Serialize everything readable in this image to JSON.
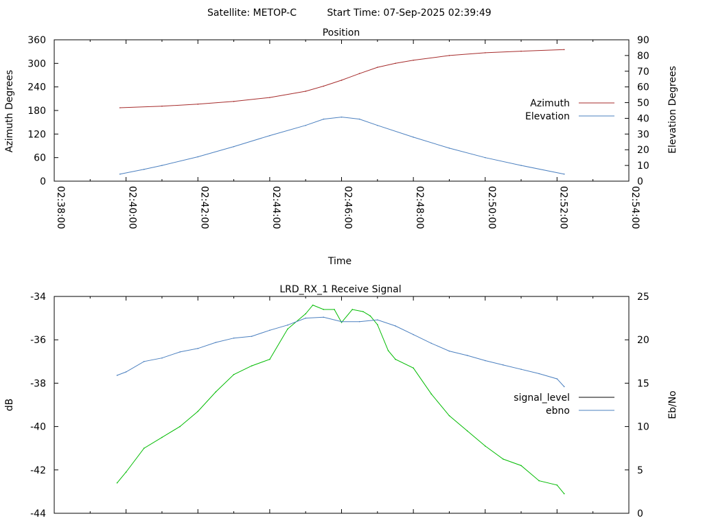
{
  "header": {
    "satellite": "Satellite: METOP-C",
    "start_time": "Start Time: 07-Sep-2025 02:39:49"
  },
  "chart_data": [
    {
      "type": "line",
      "title": "Position",
      "xlabel": "Time",
      "ylabel": "Azimuth Degrees",
      "y2label": "Elevation Degrees",
      "x_ticks": [
        "02:38:00",
        "02:40:00",
        "02:42:00",
        "02:44:00",
        "02:46:00",
        "02:48:00",
        "02:50:00",
        "02:52:00",
        "02:54:00"
      ],
      "y_ticks": [
        "0",
        "60",
        "120",
        "180",
        "240",
        "300",
        "360"
      ],
      "y2_ticks": [
        "0",
        "10",
        "20",
        "30",
        "40",
        "50",
        "60",
        "70",
        "80",
        "90"
      ],
      "xlim_minutes": [
        0,
        16
      ],
      "ylim": [
        0,
        360
      ],
      "y2lim": [
        0,
        90
      ],
      "legend_position": "right",
      "series": [
        {
          "name": "Azimuth",
          "axis": "left",
          "color": "#a52a2a",
          "x_minutes": [
            1.83,
            3,
            4,
            5,
            6,
            7,
            7.5,
            8,
            8.5,
            9,
            9.5,
            10,
            11,
            12,
            13,
            14.2
          ],
          "values": [
            187,
            191,
            196,
            203,
            213,
            229,
            242,
            257,
            274,
            290,
            300,
            308,
            320,
            327,
            331,
            335
          ]
        },
        {
          "name": "Elevation",
          "axis": "right",
          "color": "#4a7fbf",
          "x_minutes": [
            1.83,
            2.5,
            3,
            4,
            5,
            6,
            7,
            7.5,
            8,
            8.5,
            9,
            10,
            11,
            12,
            13,
            14.2
          ],
          "values": [
            4.5,
            7.5,
            10,
            15.5,
            22,
            29,
            35.5,
            39.5,
            40.8,
            39.5,
            35.5,
            28,
            21,
            15,
            10,
            4.5
          ]
        }
      ]
    },
    {
      "type": "line",
      "title": "LRD_RX_1 Receive Signal",
      "ylabel": "dB",
      "y2label": "Eb/No",
      "y_ticks": [
        "-34",
        "-36",
        "-38",
        "-40",
        "-42",
        "-44"
      ],
      "y2_ticks": [
        "25",
        "20",
        "15",
        "10",
        "5",
        "0"
      ],
      "xlim_minutes": [
        0,
        16
      ],
      "ylim": [
        -44,
        -34
      ],
      "y2lim": [
        0,
        25
      ],
      "legend_position": "right",
      "series": [
        {
          "name": "signal_level",
          "axis": "left",
          "color": "#00bb00",
          "x_minutes": [
            1.75,
            2,
            2.5,
            3,
            3.5,
            4,
            4.5,
            5,
            5.5,
            6,
            6.5,
            7,
            7.2,
            7.5,
            7.8,
            8,
            8.3,
            8.6,
            8.8,
            9,
            9.3,
            9.5,
            10,
            10.5,
            11,
            11.5,
            12,
            12.5,
            13,
            13.5,
            14,
            14.2
          ],
          "values": [
            -42.6,
            -42.1,
            -41,
            -40.5,
            -40,
            -39.3,
            -38.4,
            -37.6,
            -37.2,
            -36.9,
            -35.5,
            -34.8,
            -34.4,
            -34.6,
            -34.6,
            -35.2,
            -34.6,
            -34.7,
            -34.9,
            -35.3,
            -36.5,
            -36.9,
            -37.3,
            -38.5,
            -39.5,
            -40.2,
            -40.9,
            -41.5,
            -41.8,
            -42.5,
            -42.7,
            -43.1
          ]
        },
        {
          "name": "ebno",
          "axis": "right",
          "color": "#4a7fbf",
          "x_minutes": [
            1.75,
            2,
            2.5,
            3,
            3.5,
            4,
            4.5,
            5,
            5.5,
            6,
            6.5,
            7,
            7.5,
            8,
            8.5,
            9,
            9.5,
            10,
            10.5,
            11,
            11.5,
            12,
            12.5,
            13,
            13.5,
            14,
            14.2
          ],
          "values": [
            15.9,
            16.3,
            17.5,
            17.9,
            18.6,
            19,
            19.7,
            20.2,
            20.4,
            21.1,
            21.7,
            22.5,
            22.6,
            22.1,
            22.1,
            22.3,
            21.6,
            20.6,
            19.6,
            18.7,
            18.2,
            17.6,
            17.1,
            16.6,
            16.1,
            15.5,
            14.6
          ]
        }
      ]
    }
  ]
}
